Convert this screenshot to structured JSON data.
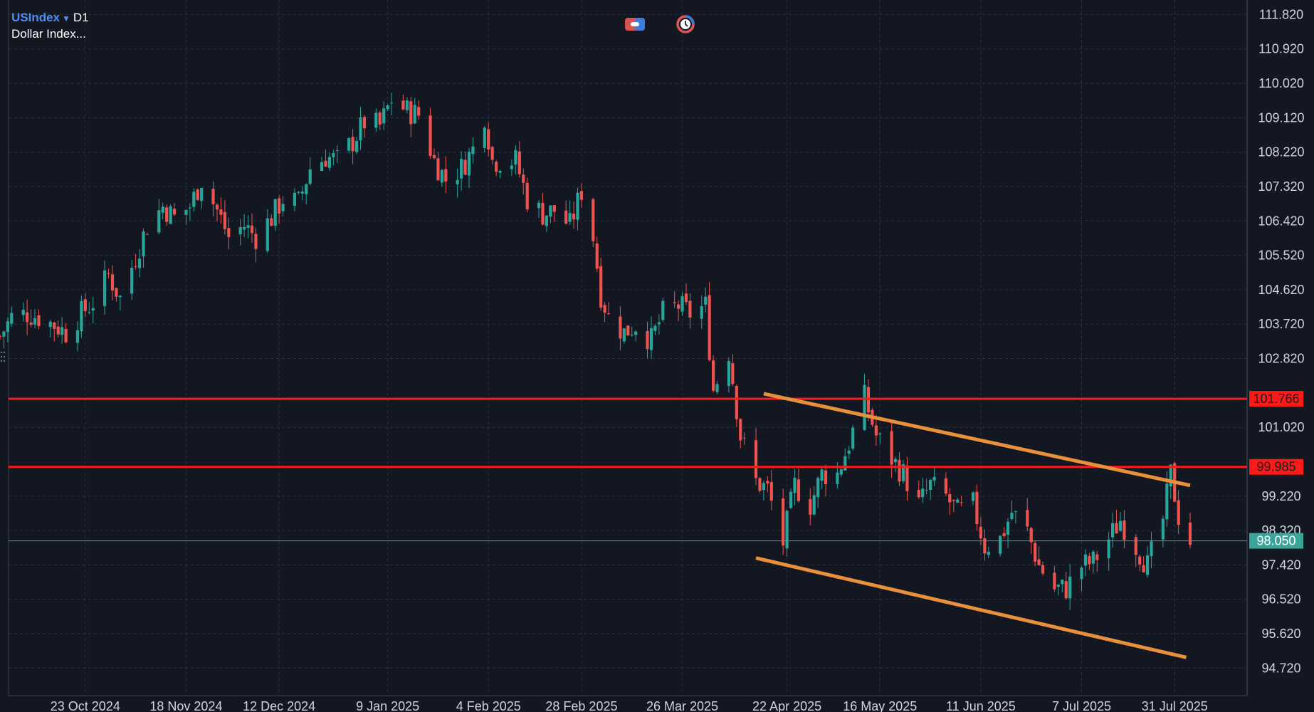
{
  "header": {
    "symbol": "USIndex",
    "timeframe": "D1",
    "description": "Dollar Index..."
  },
  "toolbar": {
    "icons": [
      "indicator-toggle-icon",
      "clock-history-icon"
    ]
  },
  "colors": {
    "background": "#131722",
    "grid": "#2a3040",
    "up_candle": "#26a69a",
    "down_candle": "#ef5350",
    "resistance_line": "#ff1a1a",
    "channel_line": "#e8913a",
    "current_price_line": "#3aa69a",
    "axis_text": "#d1d4dc"
  },
  "chart_data": {
    "type": "candlestick",
    "symbol": "USIndex",
    "timeframe": "D1",
    "y_axis": {
      "ticks": [
        "111.820",
        "110.920",
        "110.020",
        "109.120",
        "108.220",
        "107.320",
        "106.420",
        "105.520",
        "104.620",
        "103.720",
        "102.820",
        "101.020",
        "99.220",
        "98.320",
        "97.420",
        "96.520",
        "95.620",
        "94.720"
      ],
      "range": [
        94.0,
        112.2
      ]
    },
    "x_axis": {
      "ticks": [
        "23 Oct 2024",
        "18 Nov 2024",
        "12 Dec 2024",
        "9 Jan 2025",
        "4 Feb 2025",
        "28 Feb 2025",
        "26 Mar 2025",
        "22 Apr 2025",
        "16 May 2025",
        "11 Jun 2025",
        "7 Jul 2025",
        "31 Jul 2025"
      ],
      "range": [
        "2024-10-01",
        "2025-08-04"
      ]
    },
    "horizontal_levels": [
      {
        "value": 101.766,
        "label": "101.766",
        "color": "#ff1a1a"
      },
      {
        "value": 99.985,
        "label": "99.985",
        "color": "#ff1a1a"
      }
    ],
    "current_price": {
      "value": 98.05,
      "label": "98.050",
      "color": "#3aa69a"
    },
    "trend_lines": [
      {
        "name": "channel-upper",
        "from": {
          "date": "2025-04-16",
          "price": 101.9
        },
        "to": {
          "date": "2025-08-04",
          "price": 99.5
        }
      },
      {
        "name": "channel-lower",
        "from": {
          "date": "2025-04-14",
          "price": 97.6
        },
        "to": {
          "date": "2025-08-03",
          "price": 95.0
        }
      }
    ],
    "close_path": [
      [
        "2024-10-01",
        103.4
      ],
      [
        "2024-10-04",
        103.9
      ],
      [
        "2024-10-08",
        104.0
      ],
      [
        "2024-10-11",
        103.9
      ],
      [
        "2024-10-15",
        103.7
      ],
      [
        "2024-10-18",
        103.5
      ],
      [
        "2024-10-22",
        104.0
      ],
      [
        "2024-10-25",
        104.3
      ],
      [
        "2024-10-29",
        105.0
      ],
      [
        "2024-11-01",
        104.4
      ],
      [
        "2024-11-05",
        105.5
      ],
      [
        "2024-11-08",
        106.3
      ],
      [
        "2024-11-12",
        106.8
      ],
      [
        "2024-11-15",
        106.5
      ],
      [
        "2024-11-19",
        106.8
      ],
      [
        "2024-11-22",
        107.5
      ],
      [
        "2024-11-26",
        106.7
      ],
      [
        "2024-11-29",
        106.0
      ],
      [
        "2024-12-03",
        106.3
      ],
      [
        "2024-12-06",
        106.0
      ],
      [
        "2024-12-10",
        106.5
      ],
      [
        "2024-12-13",
        107.0
      ],
      [
        "2024-12-17",
        106.9
      ],
      [
        "2024-12-20",
        107.8
      ],
      [
        "2024-12-24",
        108.1
      ],
      [
        "2024-12-27",
        108.0
      ],
      [
        "2024-12-31",
        108.5
      ],
      [
        "2025-01-03",
        109.0
      ],
      [
        "2025-01-07",
        108.9
      ],
      [
        "2025-01-10",
        109.6
      ],
      [
        "2025-01-14",
        109.3
      ],
      [
        "2025-01-17",
        109.2
      ],
      [
        "2025-01-21",
        108.0
      ],
      [
        "2025-01-24",
        107.5
      ],
      [
        "2025-01-28",
        107.8
      ],
      [
        "2025-01-31",
        108.3
      ],
      [
        "2025-02-03",
        109.2
      ],
      [
        "2025-02-05",
        108.0
      ],
      [
        "2025-02-07",
        108.0
      ],
      [
        "2025-02-11",
        108.0
      ],
      [
        "2025-02-14",
        107.0
      ],
      [
        "2025-02-18",
        106.6
      ],
      [
        "2025-02-21",
        106.7
      ],
      [
        "2025-02-25",
        106.3
      ],
      [
        "2025-02-28",
        107.2
      ],
      [
        "2025-03-03",
        106.0
      ],
      [
        "2025-03-05",
        104.5
      ],
      [
        "2025-03-07",
        103.9
      ],
      [
        "2025-03-11",
        103.5
      ],
      [
        "2025-03-14",
        103.7
      ],
      [
        "2025-03-18",
        103.3
      ],
      [
        "2025-03-21",
        104.0
      ],
      [
        "2025-03-25",
        104.2
      ],
      [
        "2025-03-28",
        104.0
      ],
      [
        "2025-04-01",
        104.2
      ],
      [
        "2025-04-03",
        102.0
      ],
      [
        "2025-04-07",
        103.0
      ],
      [
        "2025-04-10",
        100.8
      ],
      [
        "2025-04-14",
        99.6
      ],
      [
        "2025-04-17",
        99.4
      ],
      [
        "2025-04-21",
        98.0
      ],
      [
        "2025-04-24",
        99.5
      ],
      [
        "2025-04-28",
        99.0
      ],
      [
        "2025-05-01",
        99.8
      ],
      [
        "2025-05-05",
        99.8
      ],
      [
        "2025-05-08",
        100.6
      ],
      [
        "2025-05-12",
        101.8
      ],
      [
        "2025-05-15",
        100.8
      ],
      [
        "2025-05-19",
        100.2
      ],
      [
        "2025-05-22",
        99.8
      ],
      [
        "2025-05-26",
        99.0
      ],
      [
        "2025-05-29",
        99.5
      ],
      [
        "2025-06-02",
        99.2
      ],
      [
        "2025-06-05",
        98.8
      ],
      [
        "2025-06-09",
        99.0
      ],
      [
        "2025-06-12",
        97.9
      ],
      [
        "2025-06-16",
        98.1
      ],
      [
        "2025-06-19",
        98.8
      ],
      [
        "2025-06-23",
        98.3
      ],
      [
        "2025-06-26",
        97.4
      ],
      [
        "2025-06-30",
        96.8
      ],
      [
        "2025-07-03",
        96.8
      ],
      [
        "2025-07-07",
        97.4
      ],
      [
        "2025-07-10",
        97.5
      ],
      [
        "2025-07-14",
        98.1
      ],
      [
        "2025-07-17",
        98.6
      ],
      [
        "2025-07-21",
        97.9
      ],
      [
        "2025-07-24",
        97.4
      ],
      [
        "2025-07-28",
        98.6
      ],
      [
        "2025-07-30",
        99.8
      ],
      [
        "2025-08-01",
        98.7
      ],
      [
        "2025-08-04",
        98.05
      ]
    ]
  }
}
